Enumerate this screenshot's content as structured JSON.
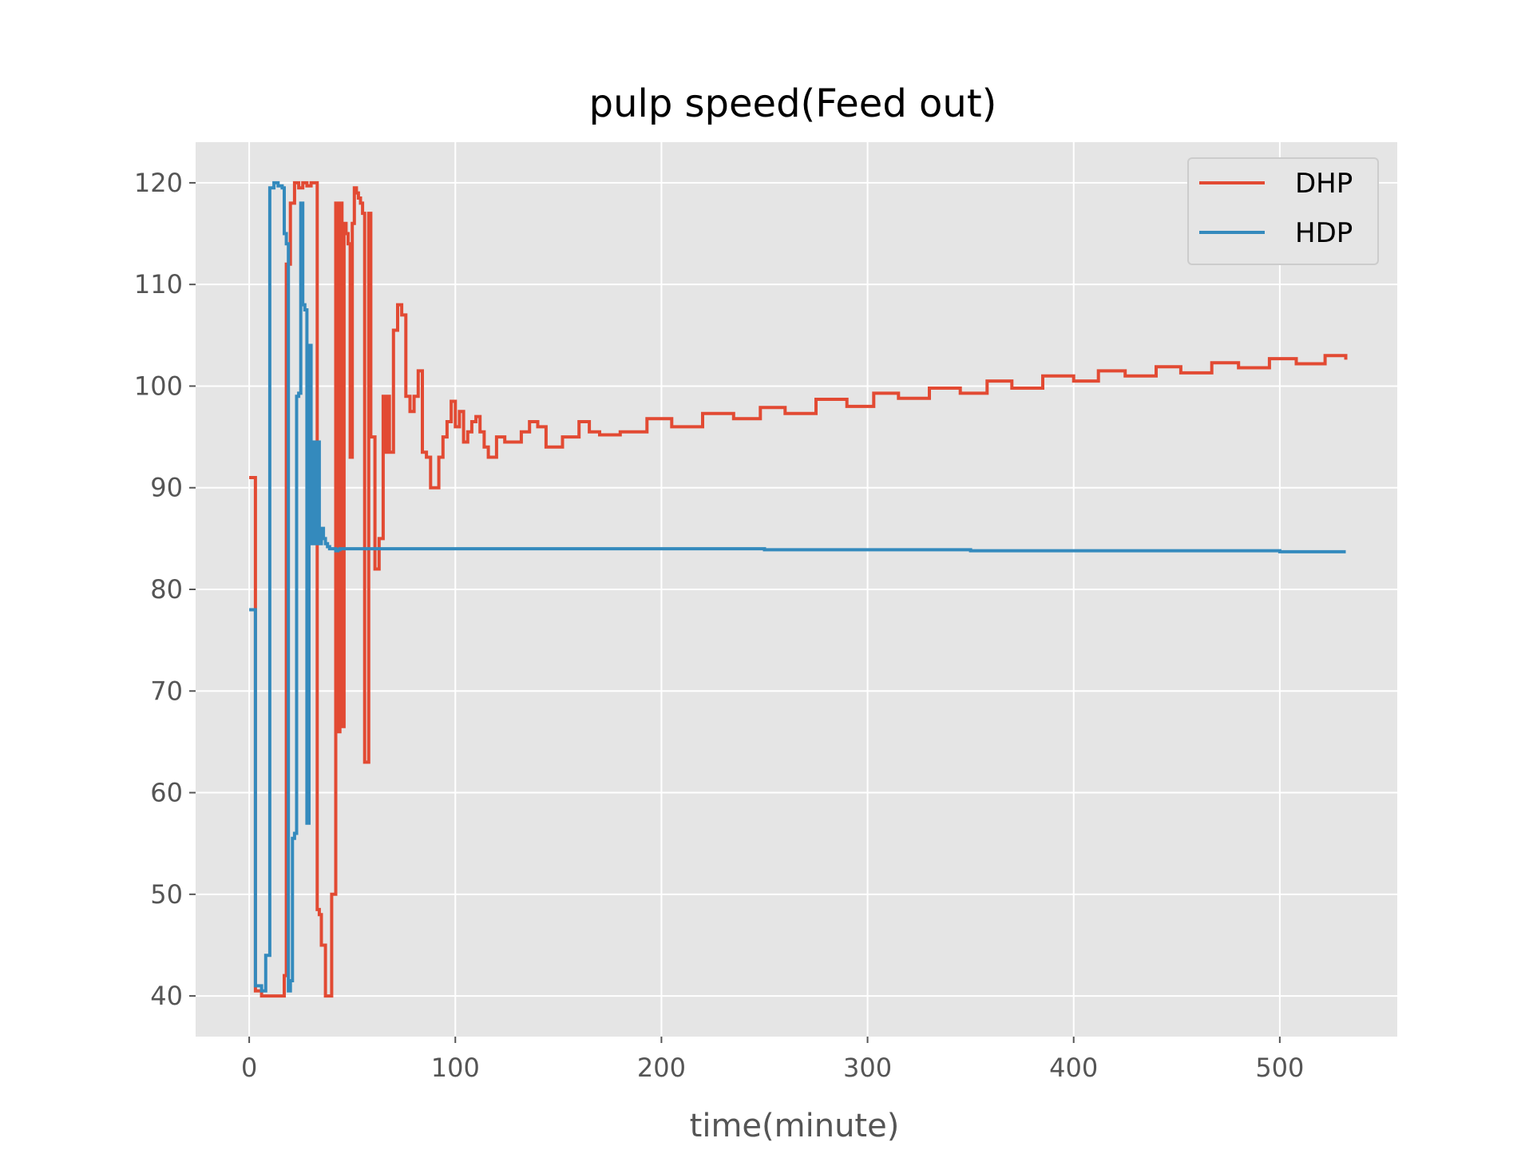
{
  "chart_data": {
    "type": "line",
    "title": "pulp speed(Feed out)",
    "xlabel": "time(minute)",
    "ylabel": "",
    "xlim": [
      -26,
      557
    ],
    "ylim": [
      36,
      124
    ],
    "xticks": [
      0,
      100,
      200,
      300,
      400,
      500
    ],
    "yticks": [
      40,
      50,
      60,
      70,
      80,
      90,
      100,
      110,
      120
    ],
    "grid": true,
    "legend": "top-right",
    "series": [
      {
        "name": "DHP",
        "color": "#E24A33",
        "x": [
          0,
          2,
          3,
          6,
          10,
          16,
          17,
          18,
          20,
          22,
          24,
          26,
          28,
          30,
          32,
          33,
          34,
          35,
          36,
          37,
          38,
          39,
          40,
          41,
          42,
          43,
          44,
          45,
          46,
          47,
          48,
          49,
          50,
          51,
          52,
          53,
          54,
          55,
          56,
          57,
          58,
          59,
          60,
          61,
          62,
          63,
          64,
          65,
          66,
          67,
          68,
          70,
          72,
          74,
          76,
          78,
          80,
          82,
          84,
          86,
          88,
          90,
          92,
          94,
          96,
          98,
          100,
          102,
          104,
          106,
          108,
          110,
          112,
          114,
          116,
          118,
          120,
          124,
          128,
          132,
          136,
          140,
          144,
          148,
          152,
          156,
          160,
          165,
          170,
          180,
          193,
          205,
          220,
          235,
          248,
          260,
          275,
          290,
          303,
          315,
          330,
          345,
          358,
          370,
          385,
          400,
          412,
          425,
          440,
          452,
          467,
          480,
          495,
          508,
          522,
          532
        ],
        "values": [
          91,
          91,
          40.5,
          40,
          40,
          40,
          42,
          112,
          118,
          120,
          119.5,
          120,
          119.7,
          120,
          120,
          48.5,
          48,
          45,
          45,
          40,
          40,
          40,
          50,
          50,
          118,
          66,
          118,
          66.5,
          116,
          115,
          114,
          93,
          116,
          119.5,
          119,
          118.5,
          118,
          117,
          63,
          63,
          117,
          95,
          95,
          82,
          82,
          85,
          85,
          99,
          93.5,
          99,
          93.5,
          105.5,
          108,
          107,
          99,
          97.5,
          99,
          101.5,
          93.5,
          93,
          90,
          90,
          93,
          95,
          96.5,
          98.5,
          96,
          97.5,
          94.5,
          95.5,
          96.5,
          97,
          95.5,
          94,
          93,
          93,
          95,
          94.5,
          94.5,
          95.5,
          96.5,
          96,
          94,
          94,
          95,
          95,
          96.5,
          95.5,
          95.2,
          95.5,
          96.8,
          96,
          97.3,
          96.8,
          97.9,
          97.3,
          98.7,
          98,
          99.3,
          98.8,
          99.8,
          99.3,
          100.5,
          99.8,
          101,
          100.5,
          101.5,
          101,
          101.9,
          101.3,
          102.3,
          101.8,
          102.7,
          102.2,
          103,
          102.6
        ]
      },
      {
        "name": "HDP",
        "color": "#348ABD",
        "x": [
          0,
          2,
          3,
          6,
          7,
          8,
          10,
          12,
          14,
          16,
          17,
          18,
          19,
          20,
          21,
          22,
          23,
          24,
          25,
          26,
          27,
          28,
          29,
          30,
          31,
          32,
          33,
          34,
          35,
          36,
          37,
          38,
          39,
          40,
          41,
          42,
          43,
          44,
          45,
          46,
          50,
          52,
          60,
          100,
          150,
          200,
          250,
          300,
          350,
          400,
          450,
          500,
          532
        ],
        "values": [
          78,
          78,
          41,
          40.5,
          40.5,
          44,
          119.5,
          120,
          119.7,
          119.5,
          115,
          114,
          40.5,
          41.5,
          55.5,
          56,
          99,
          99.3,
          118,
          108,
          107.5,
          57,
          104,
          84.5,
          94.5,
          84.5,
          94.5,
          84.5,
          86,
          85,
          84.5,
          84.2,
          84,
          84,
          84,
          83.8,
          83.9,
          84,
          84,
          84,
          84,
          84,
          84,
          84,
          84,
          84,
          83.9,
          83.9,
          83.8,
          83.8,
          83.8,
          83.7,
          83.7
        ]
      }
    ]
  }
}
